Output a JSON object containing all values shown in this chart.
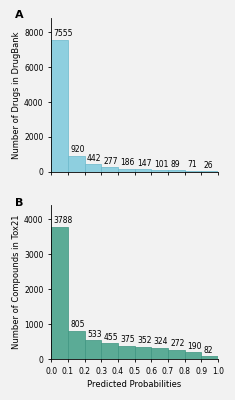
{
  "panel_A": {
    "label": "A",
    "values": [
      7555,
      920,
      442,
      277,
      186,
      147,
      101,
      89,
      71,
      26
    ],
    "bar_color": "#8ecfdf",
    "bar_edge_color": "#6ab8cc",
    "ylabel": "Number of Drugs in DrugBank",
    "ylim": [
      0,
      8800
    ],
    "yticks": [
      0,
      2000,
      4000,
      6000,
      8000
    ],
    "bar_labels": [
      "7555",
      "920",
      "442",
      "277",
      "186",
      "147",
      "101",
      "89",
      "71",
      "26"
    ]
  },
  "panel_B": {
    "label": "B",
    "values": [
      3788,
      805,
      533,
      455,
      375,
      352,
      324,
      272,
      190,
      82
    ],
    "bar_color": "#5bab96",
    "bar_edge_color": "#3d9480",
    "ylabel": "Number of Compounds in Tox21",
    "ylim": [
      0,
      4400
    ],
    "yticks": [
      0,
      1000,
      2000,
      3000,
      4000
    ],
    "bar_labels": [
      "3788",
      "805",
      "533",
      "455",
      "375",
      "352",
      "324",
      "272",
      "190",
      "82"
    ]
  },
  "xlabel": "Predicted Probabilities",
  "xticks": [
    0.0,
    0.1,
    0.2,
    0.3,
    0.4,
    0.5,
    0.6,
    0.7,
    0.8,
    0.9,
    1.0
  ],
  "xticklabels": [
    "0.0",
    "0.1",
    "0.2",
    "0.3",
    "0.4",
    "0.5",
    "0.6",
    "0.7",
    "0.8",
    "0.9",
    "1.0"
  ],
  "bin_edges": [
    0.0,
    0.1,
    0.2,
    0.3,
    0.4,
    0.5,
    0.6,
    0.7,
    0.8,
    0.9,
    1.0
  ],
  "label_fontsize": 5.5,
  "axis_label_fontsize": 6,
  "tick_fontsize": 5.5,
  "panel_label_fontsize": 8,
  "bg_color": "#f2f2f2"
}
